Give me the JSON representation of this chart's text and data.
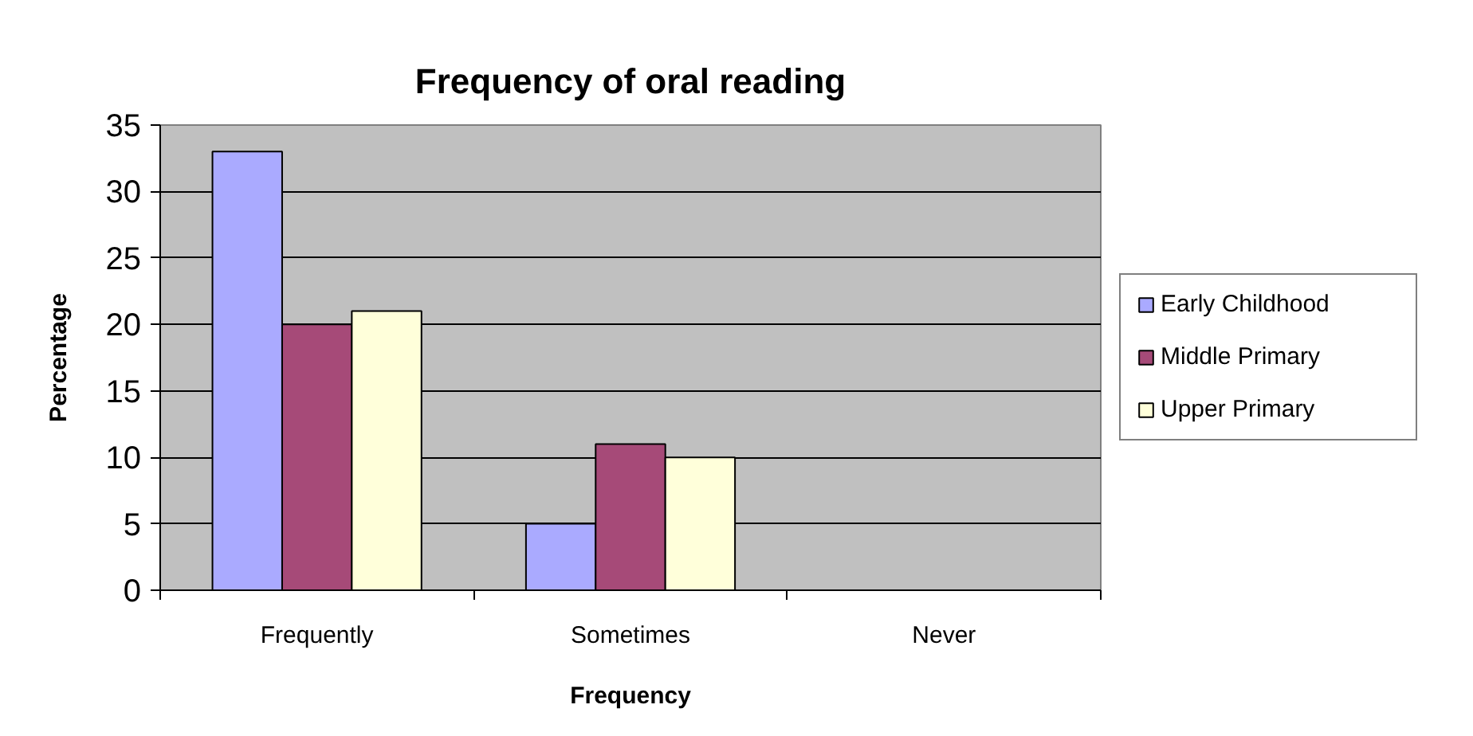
{
  "chart_data": {
    "type": "bar",
    "title": "Frequency of oral reading",
    "xlabel": "Frequency",
    "ylabel": "Percentage",
    "categories": [
      "Frequently",
      "Sometimes",
      "Never"
    ],
    "series": [
      {
        "name": "Early Childhood",
        "color": "#aaaaff",
        "values": [
          33,
          5,
          null
        ]
      },
      {
        "name": "Middle Primary",
        "color": "#a64a78",
        "values": [
          20,
          11,
          null
        ]
      },
      {
        "name": "Upper Primary",
        "color": "#ffffda",
        "values": [
          21,
          10,
          null
        ]
      }
    ],
    "ylim": [
      0,
      35
    ],
    "yticks": [
      0,
      5,
      10,
      15,
      20,
      25,
      30,
      35
    ],
    "grid": "y",
    "legend": "right"
  }
}
